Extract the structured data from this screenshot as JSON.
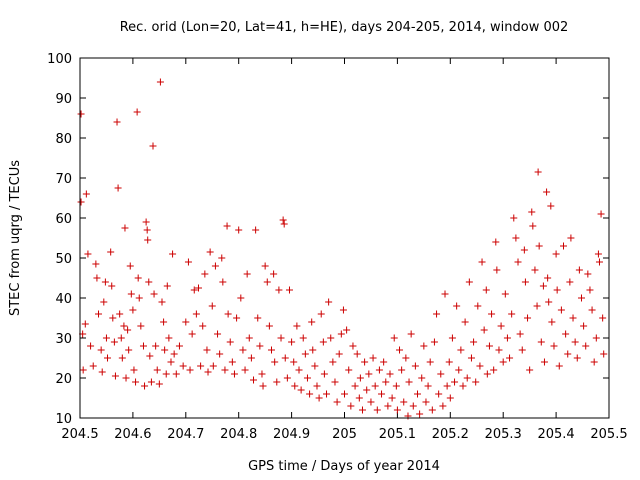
{
  "chart_data": {
    "type": "scatter",
    "title": "Rec. orid (Lon=20, Lat=41, h=HE), days 204-205, 2014, window 002",
    "xlabel": "GPS time / Days of year 2014",
    "ylabel": "STEC from uqrg / TECUs",
    "xlim": [
      204.5,
      205.5
    ],
    "ylim": [
      10,
      100
    ],
    "xticks": [
      "204.5",
      "204.6",
      "204.7",
      "204.8",
      "204.9",
      "205",
      "205.1",
      "205.2",
      "205.3",
      "205.4",
      "205.5"
    ],
    "yticks": [
      "10",
      "20",
      "30",
      "40",
      "50",
      "60",
      "70",
      "80",
      "90",
      "100"
    ],
    "grid": false,
    "legend": "none",
    "marker": "plus",
    "marker_color": "#cc0000",
    "series": [
      {
        "points": [
          [
            204.502,
            86
          ],
          [
            204.502,
            64
          ],
          [
            204.505,
            31
          ],
          [
            204.506,
            22
          ],
          [
            204.51,
            33.5
          ],
          [
            204.512,
            66
          ],
          [
            204.515,
            51
          ],
          [
            204.52,
            28
          ],
          [
            204.525,
            23
          ],
          [
            204.53,
            48.5
          ],
          [
            204.532,
            45
          ],
          [
            204.535,
            36
          ],
          [
            204.54,
            27
          ],
          [
            204.542,
            21.5
          ],
          [
            204.545,
            39
          ],
          [
            204.548,
            44
          ],
          [
            204.55,
            30
          ],
          [
            204.552,
            25
          ],
          [
            204.558,
            51.5
          ],
          [
            204.56,
            43
          ],
          [
            204.562,
            35
          ],
          [
            204.565,
            29
          ],
          [
            204.567,
            20.5
          ],
          [
            204.57,
            84
          ],
          [
            204.572,
            67.5
          ],
          [
            204.575,
            36
          ],
          [
            204.578,
            30
          ],
          [
            204.58,
            25
          ],
          [
            204.583,
            33
          ],
          [
            204.585,
            57.5
          ],
          [
            204.587,
            20
          ],
          [
            204.59,
            32
          ],
          [
            204.592,
            27
          ],
          [
            204.595,
            48
          ],
          [
            204.597,
            41
          ],
          [
            204.6,
            37
          ],
          [
            204.602,
            22
          ],
          [
            204.605,
            19
          ],
          [
            204.608,
            86.5
          ],
          [
            204.61,
            45
          ],
          [
            204.612,
            40
          ],
          [
            204.615,
            33
          ],
          [
            204.62,
            28
          ],
          [
            204.622,
            18
          ],
          [
            204.625,
            59
          ],
          [
            204.627,
            57
          ],
          [
            204.628,
            54.5
          ],
          [
            204.63,
            44
          ],
          [
            204.632,
            25.5
          ],
          [
            204.635,
            19
          ],
          [
            204.638,
            78
          ],
          [
            204.64,
            41
          ],
          [
            204.643,
            28
          ],
          [
            204.646,
            22
          ],
          [
            204.65,
            18.5
          ],
          [
            204.652,
            94
          ],
          [
            204.655,
            39
          ],
          [
            204.658,
            34
          ],
          [
            204.66,
            27
          ],
          [
            204.663,
            21
          ],
          [
            204.665,
            43
          ],
          [
            204.668,
            30
          ],
          [
            204.672,
            24
          ],
          [
            204.675,
            51
          ],
          [
            204.678,
            26
          ],
          [
            204.682,
            21
          ],
          [
            204.688,
            28
          ],
          [
            204.695,
            23
          ],
          [
            204.7,
            34
          ],
          [
            204.705,
            49
          ],
          [
            204.708,
            22
          ],
          [
            204.712,
            31
          ],
          [
            204.716,
            42
          ],
          [
            204.72,
            36
          ],
          [
            204.724,
            42.5
          ],
          [
            204.728,
            23
          ],
          [
            204.732,
            33
          ],
          [
            204.736,
            46
          ],
          [
            204.74,
            27
          ],
          [
            204.742,
            21.5
          ],
          [
            204.746,
            51.5
          ],
          [
            204.75,
            38
          ],
          [
            204.752,
            23
          ],
          [
            204.756,
            48
          ],
          [
            204.76,
            31
          ],
          [
            204.764,
            26
          ],
          [
            204.768,
            50
          ],
          [
            204.77,
            44
          ],
          [
            204.774,
            22
          ],
          [
            204.778,
            58
          ],
          [
            204.78,
            36
          ],
          [
            204.784,
            29
          ],
          [
            204.788,
            24
          ],
          [
            204.792,
            21
          ],
          [
            204.796,
            35
          ],
          [
            204.8,
            57
          ],
          [
            204.804,
            40
          ],
          [
            204.808,
            27
          ],
          [
            204.812,
            22
          ],
          [
            204.816,
            46
          ],
          [
            204.82,
            30
          ],
          [
            204.824,
            25
          ],
          [
            204.828,
            19.5
          ],
          [
            204.832,
            57
          ],
          [
            204.836,
            35
          ],
          [
            204.84,
            28
          ],
          [
            204.844,
            21
          ],
          [
            204.846,
            18
          ],
          [
            204.85,
            48
          ],
          [
            204.854,
            44
          ],
          [
            204.858,
            33
          ],
          [
            204.862,
            27
          ],
          [
            204.866,
            46
          ],
          [
            204.868,
            24
          ],
          [
            204.872,
            19
          ],
          [
            204.876,
            42
          ],
          [
            204.88,
            30
          ],
          [
            204.884,
            59.5
          ],
          [
            204.886,
            58.5
          ],
          [
            204.888,
            25
          ],
          [
            204.892,
            20
          ],
          [
            204.896,
            42
          ],
          [
            204.9,
            29
          ],
          [
            204.904,
            24
          ],
          [
            204.906,
            18
          ],
          [
            204.91,
            33
          ],
          [
            204.914,
            22
          ],
          [
            204.918,
            17
          ],
          [
            204.922,
            30
          ],
          [
            204.926,
            26
          ],
          [
            204.93,
            20
          ],
          [
            204.934,
            16
          ],
          [
            204.938,
            34
          ],
          [
            204.94,
            27
          ],
          [
            204.944,
            23
          ],
          [
            204.948,
            18
          ],
          [
            204.952,
            15
          ],
          [
            204.956,
            36
          ],
          [
            204.96,
            29
          ],
          [
            204.962,
            21
          ],
          [
            204.966,
            16
          ],
          [
            204.97,
            39
          ],
          [
            204.974,
            30
          ],
          [
            204.978,
            24
          ],
          [
            204.982,
            19
          ],
          [
            204.986,
            14
          ],
          [
            204.99,
            26
          ],
          [
            204.994,
            31
          ],
          [
            204.998,
            37
          ],
          [
            205,
            16
          ],
          [
            205.004,
            32
          ],
          [
            205.008,
            22
          ],
          [
            205.012,
            13
          ],
          [
            205.016,
            28
          ],
          [
            205.02,
            18
          ],
          [
            205.024,
            26
          ],
          [
            205.028,
            15
          ],
          [
            205.03,
            20
          ],
          [
            205.034,
            12
          ],
          [
            205.038,
            24
          ],
          [
            205.042,
            17
          ],
          [
            205.046,
            21
          ],
          [
            205.05,
            14
          ],
          [
            205.054,
            25
          ],
          [
            205.058,
            18
          ],
          [
            205.062,
            12
          ],
          [
            205.066,
            22
          ],
          [
            205.07,
            16
          ],
          [
            205.074,
            24
          ],
          [
            205.078,
            19
          ],
          [
            205.082,
            13
          ],
          [
            205.086,
            21
          ],
          [
            205.09,
            15
          ],
          [
            205.094,
            30
          ],
          [
            205.098,
            18
          ],
          [
            205.1,
            12
          ],
          [
            205.104,
            27
          ],
          [
            205.108,
            22
          ],
          [
            205.112,
            14
          ],
          [
            205.116,
            25
          ],
          [
            205.12,
            10.5
          ],
          [
            205.122,
            19
          ],
          [
            205.126,
            31
          ],
          [
            205.13,
            13
          ],
          [
            205.134,
            23
          ],
          [
            205.138,
            16
          ],
          [
            205.142,
            11
          ],
          [
            205.146,
            20
          ],
          [
            205.15,
            28
          ],
          [
            205.154,
            14
          ],
          [
            205.158,
            18
          ],
          [
            205.162,
            24
          ],
          [
            205.166,
            12
          ],
          [
            205.17,
            29
          ],
          [
            205.174,
            36
          ],
          [
            205.178,
            16
          ],
          [
            205.182,
            21
          ],
          [
            205.186,
            13
          ],
          [
            205.19,
            41
          ],
          [
            205.194,
            18
          ],
          [
            205.198,
            24
          ],
          [
            205.2,
            15
          ],
          [
            205.204,
            30
          ],
          [
            205.208,
            19
          ],
          [
            205.212,
            38
          ],
          [
            205.216,
            22
          ],
          [
            205.22,
            27
          ],
          [
            205.224,
            18
          ],
          [
            205.228,
            34
          ],
          [
            205.232,
            20
          ],
          [
            205.236,
            44
          ],
          [
            205.24,
            25
          ],
          [
            205.244,
            29
          ],
          [
            205.248,
            19
          ],
          [
            205.252,
            38
          ],
          [
            205.256,
            23
          ],
          [
            205.26,
            49
          ],
          [
            205.264,
            32
          ],
          [
            205.268,
            42
          ],
          [
            205.27,
            21
          ],
          [
            205.274,
            28
          ],
          [
            205.278,
            36
          ],
          [
            205.282,
            22
          ],
          [
            205.286,
            54
          ],
          [
            205.288,
            47
          ],
          [
            205.292,
            27
          ],
          [
            205.296,
            33
          ],
          [
            205.3,
            24
          ],
          [
            205.304,
            41
          ],
          [
            205.308,
            30
          ],
          [
            205.312,
            25
          ],
          [
            205.316,
            36
          ],
          [
            205.32,
            60
          ],
          [
            205.324,
            55
          ],
          [
            205.328,
            49
          ],
          [
            205.332,
            31
          ],
          [
            205.336,
            27
          ],
          [
            205.34,
            52
          ],
          [
            205.342,
            44
          ],
          [
            205.346,
            35
          ],
          [
            205.35,
            22
          ],
          [
            205.354,
            61.5
          ],
          [
            205.356,
            58
          ],
          [
            205.36,
            47
          ],
          [
            205.364,
            38
          ],
          [
            205.366,
            71.5
          ],
          [
            205.368,
            53
          ],
          [
            205.372,
            29
          ],
          [
            205.376,
            43
          ],
          [
            205.378,
            24
          ],
          [
            205.382,
            66.5
          ],
          [
            205.384,
            45
          ],
          [
            205.386,
            39
          ],
          [
            205.39,
            63
          ],
          [
            205.392,
            34
          ],
          [
            205.396,
            28
          ],
          [
            205.4,
            51
          ],
          [
            205.402,
            42
          ],
          [
            205.406,
            23
          ],
          [
            205.41,
            37
          ],
          [
            205.414,
            53
          ],
          [
            205.418,
            31
          ],
          [
            205.422,
            26
          ],
          [
            205.426,
            44
          ],
          [
            205.428,
            55
          ],
          [
            205.432,
            35
          ],
          [
            205.436,
            29
          ],
          [
            205.44,
            25
          ],
          [
            205.444,
            47
          ],
          [
            205.448,
            40
          ],
          [
            205.452,
            33
          ],
          [
            205.456,
            28
          ],
          [
            205.46,
            46
          ],
          [
            205.464,
            42
          ],
          [
            205.468,
            37
          ],
          [
            205.472,
            24
          ],
          [
            205.476,
            30
          ],
          [
            205.48,
            51
          ],
          [
            205.482,
            49
          ],
          [
            205.485,
            61
          ],
          [
            205.488,
            35
          ],
          [
            205.49,
            26
          ]
        ]
      }
    ]
  }
}
